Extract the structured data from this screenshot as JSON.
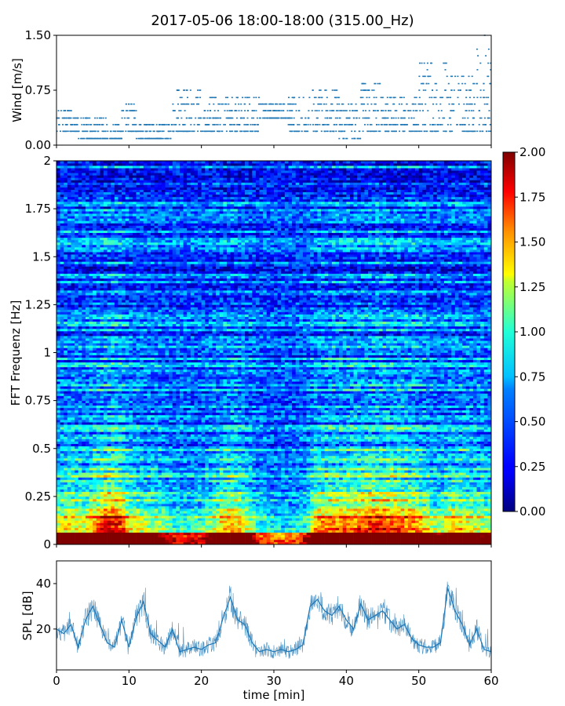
{
  "title": "2017-05-06 18:00-18:00 (315.00_Hz)",
  "chart_data": [
    {
      "id": "wind",
      "type": "scatter",
      "title": "",
      "xlabel": "",
      "ylabel": "Wind [m/s]",
      "xlim": [
        0,
        60
      ],
      "ylim": [
        0,
        1.5
      ],
      "yticks": [
        0.0,
        0.75,
        1.5
      ],
      "ytick_labels": [
        "0.00",
        "0.75",
        "1.50"
      ],
      "color": "#1f77b4",
      "y_levels": [
        0.09,
        0.19,
        0.28,
        0.37,
        0.47,
        0.56,
        0.65,
        0.75,
        0.84,
        0.94,
        1.03,
        1.12,
        1.22,
        1.31,
        1.4,
        1.5
      ],
      "segments": [
        {
          "x": [
            0,
            3
          ],
          "y": [
            0.19,
            0.47
          ]
        },
        {
          "x": [
            3,
            7
          ],
          "y": [
            0.09,
            0.37
          ]
        },
        {
          "x": [
            7,
            9
          ],
          "y": [
            0.09,
            0.28
          ]
        },
        {
          "x": [
            9,
            11
          ],
          "y": [
            0.19,
            0.56
          ]
        },
        {
          "x": [
            11,
            16
          ],
          "y": [
            0.09,
            0.28
          ]
        },
        {
          "x": [
            16,
            20
          ],
          "y": [
            0.19,
            0.75
          ]
        },
        {
          "x": [
            20,
            28
          ],
          "y": [
            0.19,
            0.65
          ]
        },
        {
          "x": [
            28,
            32
          ],
          "y": [
            0.37,
            0.56
          ]
        },
        {
          "x": [
            32,
            35
          ],
          "y": [
            0.19,
            0.65
          ]
        },
        {
          "x": [
            35,
            39
          ],
          "y": [
            0.19,
            0.75
          ]
        },
        {
          "x": [
            39,
            42
          ],
          "y": [
            0.09,
            0.56
          ]
        },
        {
          "x": [
            42,
            45
          ],
          "y": [
            0.19,
            0.84
          ]
        },
        {
          "x": [
            45,
            50
          ],
          "y": [
            0.19,
            0.65
          ]
        },
        {
          "x": [
            50,
            54
          ],
          "y": [
            0.19,
            1.12
          ]
        },
        {
          "x": [
            54,
            58
          ],
          "y": [
            0.19,
            0.94
          ]
        },
        {
          "x": [
            58,
            60
          ],
          "y": [
            0.19,
            1.5
          ]
        }
      ]
    },
    {
      "id": "spectrogram",
      "type": "heatmap",
      "title": "",
      "xlabel": "",
      "ylabel": "FFT Frequenz [Hz]",
      "xlim": [
        0,
        60
      ],
      "ylim": [
        0,
        2
      ],
      "yticks": [
        0,
        0.25,
        0.5,
        0.75,
        1,
        1.25,
        1.5,
        1.75,
        2
      ],
      "ytick_labels": [
        "0",
        "0.25",
        "0.5",
        "0.75",
        "1",
        "1.25",
        "1.5",
        "1.75",
        "2"
      ],
      "colormap": "jet",
      "colorbar": {
        "range": [
          0,
          2
        ],
        "ticks": [
          "0.00",
          "0.25",
          "0.50",
          "0.75",
          "1.00",
          "1.25",
          "1.50",
          "1.75",
          "2.00"
        ]
      },
      "activity_profile": {
        "x": [
          0,
          2,
          4,
          6,
          7,
          8,
          9,
          10,
          12,
          14,
          16,
          18,
          20,
          22,
          23,
          24,
          25,
          26,
          27,
          28,
          30,
          32,
          34,
          35,
          36,
          38,
          40,
          42,
          44,
          46,
          48,
          50,
          52,
          53,
          54,
          55,
          56,
          58,
          60
        ],
        "level": [
          0.55,
          0.65,
          0.6,
          0.85,
          1.0,
          1.0,
          0.9,
          0.6,
          0.55,
          0.5,
          0.35,
          0.35,
          0.35,
          0.55,
          0.7,
          0.75,
          0.7,
          0.55,
          0.45,
          0.3,
          0.25,
          0.25,
          0.3,
          0.5,
          0.75,
          0.8,
          0.8,
          0.85,
          0.95,
          0.9,
          0.85,
          0.75,
          0.5,
          0.45,
          0.6,
          0.7,
          0.65,
          0.55,
          0.5
        ]
      }
    },
    {
      "id": "spl",
      "type": "line",
      "title": "",
      "xlabel": "time [min]",
      "ylabel": "SPL [dB]",
      "xlim": [
        0,
        60
      ],
      "ylim": [
        2,
        50
      ],
      "yticks": [
        20,
        40
      ],
      "ytick_labels": [
        "20",
        "40"
      ],
      "xticks": [
        0,
        10,
        20,
        30,
        40,
        50,
        60
      ],
      "xtick_labels": [
        "0",
        "10",
        "20",
        "30",
        "40",
        "50",
        "60"
      ],
      "color": "#1f77b4",
      "series": [
        {
          "x": [
            0,
            1,
            2,
            3,
            4,
            5,
            6,
            7,
            8,
            9,
            10,
            11,
            12,
            13,
            14,
            15,
            16,
            17,
            18,
            19,
            20,
            21,
            22,
            23,
            24,
            25,
            26,
            27,
            28,
            29,
            30,
            31,
            32,
            33,
            34,
            35,
            36,
            37,
            38,
            39,
            40,
            41,
            42,
            43,
            44,
            45,
            46,
            47,
            48,
            49,
            50,
            51,
            52,
            53,
            54,
            55,
            56,
            57,
            58,
            59,
            60
          ],
          "values": [
            20,
            18,
            22,
            12,
            24,
            30,
            22,
            14,
            12,
            24,
            12,
            25,
            32,
            18,
            15,
            12,
            20,
            10,
            11,
            12,
            11,
            13,
            14,
            25,
            34,
            24,
            22,
            14,
            10,
            11,
            10,
            11,
            10,
            11,
            13,
            30,
            33,
            28,
            26,
            30,
            24,
            20,
            31,
            24,
            26,
            28,
            24,
            20,
            22,
            16,
            13,
            12,
            12,
            14,
            38,
            28,
            22,
            13,
            20,
            11,
            10
          ]
        }
      ]
    }
  ]
}
